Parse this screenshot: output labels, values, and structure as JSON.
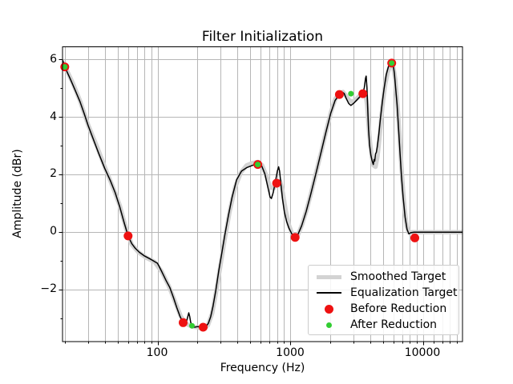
{
  "chart_data": {
    "type": "line",
    "title": "Filter Initialization",
    "xlabel": "Frequency (Hz)",
    "ylabel": "Amplitude (dBr)",
    "x_scale": "log",
    "xlim": [
      19.3,
      19950
    ],
    "ylim": [
      -3.82,
      6.42
    ],
    "grid": {
      "color": "#b6b6b6",
      "x": "major+minor",
      "y": "major"
    },
    "x_major_ticks": [
      {
        "value": 100,
        "label": "100"
      },
      {
        "value": 1000,
        "label": "1000"
      },
      {
        "value": 10000,
        "label": "10000"
      }
    ],
    "x_minor_ticks": [
      20,
      30,
      40,
      50,
      60,
      70,
      80,
      90,
      200,
      300,
      400,
      500,
      600,
      700,
      800,
      900,
      2000,
      3000,
      4000,
      5000,
      6000,
      7000,
      8000,
      9000,
      12000,
      14000,
      16000,
      18000
    ],
    "y_major_ticks": [
      {
        "value": 6,
        "label": "6"
      },
      {
        "value": 4,
        "label": "4"
      },
      {
        "value": 2,
        "label": "2"
      },
      {
        "value": 0,
        "label": "0"
      },
      {
        "value": -2,
        "label": "−2"
      }
    ],
    "y_minor_ticks": [
      5,
      3,
      1,
      -1,
      -3
    ],
    "legend": {
      "location": "lower right",
      "entries": [
        {
          "label": "Smoothed Target",
          "type": "line",
          "color": "#d3d3d3",
          "linewidth": 5.5
        },
        {
          "label": "Equalization Target",
          "type": "line",
          "color": "#000000",
          "linewidth": 1.5
        },
        {
          "label": "Before Reduction",
          "type": "marker",
          "color": "#ee1111",
          "size": 11
        },
        {
          "label": "After Reduction",
          "type": "marker",
          "color": "#32cd32",
          "size": 7
        }
      ]
    },
    "series": [
      {
        "name": "Smoothed Target",
        "type": "line",
        "color": "#d3d3d3",
        "linewidth": 5.5,
        "points": [
          [
            19.3,
            5.88
          ],
          [
            20,
            5.75
          ],
          [
            23,
            5.15
          ],
          [
            26,
            4.55
          ],
          [
            30,
            3.7
          ],
          [
            35,
            2.95
          ],
          [
            40,
            2.25
          ],
          [
            46,
            1.55
          ],
          [
            52,
            0.9
          ],
          [
            58,
            0.1
          ],
          [
            64,
            -0.45
          ],
          [
            72,
            -0.72
          ],
          [
            82,
            -0.9
          ],
          [
            95,
            -1.05
          ],
          [
            108,
            -1.4
          ],
          [
            122,
            -1.9
          ],
          [
            136,
            -2.45
          ],
          [
            150,
            -2.95
          ],
          [
            165,
            -3.2
          ],
          [
            182,
            -3.3
          ],
          [
            200,
            -3.32
          ],
          [
            220,
            -3.38
          ],
          [
            240,
            -3.25
          ],
          [
            258,
            -2.85
          ],
          [
            275,
            -2.15
          ],
          [
            295,
            -1.3
          ],
          [
            320,
            -0.3
          ],
          [
            350,
            0.7
          ],
          [
            385,
            1.55
          ],
          [
            425,
            2.05
          ],
          [
            470,
            2.3
          ],
          [
            520,
            2.38
          ],
          [
            570,
            2.42
          ],
          [
            615,
            2.3
          ],
          [
            660,
            1.95
          ],
          [
            705,
            1.55
          ],
          [
            750,
            1.5
          ],
          [
            800,
            1.7
          ],
          [
            840,
            1.75
          ],
          [
            880,
            1.35
          ],
          [
            925,
            0.75
          ],
          [
            975,
            0.25
          ],
          [
            1030,
            -0.05
          ],
          [
            1090,
            -0.18
          ],
          [
            1150,
            -0.1
          ],
          [
            1230,
            0.25
          ],
          [
            1330,
            0.75
          ],
          [
            1440,
            1.35
          ],
          [
            1570,
            2.05
          ],
          [
            1710,
            2.75
          ],
          [
            1870,
            3.5
          ],
          [
            2030,
            4.15
          ],
          [
            2190,
            4.6
          ],
          [
            2350,
            4.8
          ],
          [
            2500,
            4.85
          ],
          [
            2650,
            4.7
          ],
          [
            2800,
            4.55
          ],
          [
            2950,
            4.5
          ],
          [
            3150,
            4.6
          ],
          [
            3350,
            4.72
          ],
          [
            3550,
            4.82
          ],
          [
            3700,
            4.8
          ],
          [
            3800,
            4.4
          ],
          [
            3900,
            3.7
          ],
          [
            4000,
            3.1
          ],
          [
            4120,
            2.6
          ],
          [
            4250,
            2.3
          ],
          [
            4400,
            2.25
          ],
          [
            4550,
            2.6
          ],
          [
            4700,
            3.2
          ],
          [
            4850,
            3.9
          ],
          [
            5000,
            4.5
          ],
          [
            5200,
            5.1
          ],
          [
            5450,
            5.55
          ],
          [
            5700,
            5.78
          ],
          [
            5850,
            5.8
          ],
          [
            6000,
            5.7
          ],
          [
            6200,
            5.3
          ],
          [
            6400,
            4.55
          ],
          [
            6600,
            3.7
          ],
          [
            6800,
            2.7
          ],
          [
            7050,
            1.6
          ],
          [
            7300,
            0.75
          ],
          [
            7550,
            0.2
          ],
          [
            7800,
            -0.02
          ],
          [
            8200,
            -0.02
          ],
          [
            9000,
            -0.02
          ],
          [
            12000,
            -0.02
          ],
          [
            19900,
            -0.02
          ]
        ]
      },
      {
        "name": "Equalization Target",
        "type": "line",
        "color": "#000000",
        "linewidth": 1.5,
        "points": [
          [
            19.3,
            5.95
          ],
          [
            20,
            5.72
          ],
          [
            22,
            5.3
          ],
          [
            24,
            4.9
          ],
          [
            26,
            4.52
          ],
          [
            28,
            4.1
          ],
          [
            30,
            3.68
          ],
          [
            33,
            3.18
          ],
          [
            36,
            2.72
          ],
          [
            40,
            2.2
          ],
          [
            44,
            1.78
          ],
          [
            48,
            1.35
          ],
          [
            52,
            0.85
          ],
          [
            56,
            0.32
          ],
          [
            60,
            -0.15
          ],
          [
            64,
            -0.42
          ],
          [
            68,
            -0.58
          ],
          [
            73,
            -0.72
          ],
          [
            80,
            -0.85
          ],
          [
            88,
            -0.95
          ],
          [
            100,
            -1.1
          ],
          [
            108,
            -1.4
          ],
          [
            116,
            -1.7
          ],
          [
            124,
            -1.95
          ],
          [
            132,
            -2.3
          ],
          [
            140,
            -2.65
          ],
          [
            148,
            -2.95
          ],
          [
            156,
            -3.16
          ],
          [
            162,
            -3.18
          ],
          [
            166,
            -3.1
          ],
          [
            170,
            -2.92
          ],
          [
            172,
            -2.82
          ],
          [
            175,
            -2.95
          ],
          [
            178,
            -3.15
          ],
          [
            182,
            -3.27
          ],
          [
            190,
            -3.32
          ],
          [
            200,
            -3.3
          ],
          [
            210,
            -3.31
          ],
          [
            221,
            -3.32
          ],
          [
            232,
            -3.3
          ],
          [
            242,
            -3.18
          ],
          [
            252,
            -2.95
          ],
          [
            262,
            -2.6
          ],
          [
            275,
            -2.05
          ],
          [
            290,
            -1.35
          ],
          [
            305,
            -0.75
          ],
          [
            322,
            -0.1
          ],
          [
            342,
            0.55
          ],
          [
            365,
            1.2
          ],
          [
            395,
            1.8
          ],
          [
            430,
            2.1
          ],
          [
            470,
            2.22
          ],
          [
            520,
            2.3
          ],
          [
            570,
            2.36
          ],
          [
            610,
            2.28
          ],
          [
            645,
            2.0
          ],
          [
            675,
            1.6
          ],
          [
            705,
            1.2
          ],
          [
            722,
            1.15
          ],
          [
            745,
            1.35
          ],
          [
            775,
            1.75
          ],
          [
            800,
            2.1
          ],
          [
            818,
            2.25
          ],
          [
            832,
            2.1
          ],
          [
            850,
            1.7
          ],
          [
            875,
            1.15
          ],
          [
            905,
            0.68
          ],
          [
            940,
            0.35
          ],
          [
            980,
            0.12
          ],
          [
            1030,
            -0.08
          ],
          [
            1090,
            -0.2
          ],
          [
            1140,
            -0.12
          ],
          [
            1220,
            0.2
          ],
          [
            1320,
            0.7
          ],
          [
            1430,
            1.3
          ],
          [
            1560,
            2.0
          ],
          [
            1700,
            2.7
          ],
          [
            1860,
            3.45
          ],
          [
            2020,
            4.1
          ],
          [
            2180,
            4.55
          ],
          [
            2350,
            4.76
          ],
          [
            2450,
            4.85
          ],
          [
            2550,
            4.8
          ],
          [
            2650,
            4.62
          ],
          [
            2760,
            4.45
          ],
          [
            2870,
            4.38
          ],
          [
            3000,
            4.45
          ],
          [
            3150,
            4.55
          ],
          [
            3350,
            4.68
          ],
          [
            3530,
            4.79
          ],
          [
            3620,
            5.0
          ],
          [
            3700,
            5.32
          ],
          [
            3740,
            5.4
          ],
          [
            3790,
            5.0
          ],
          [
            3840,
            4.3
          ],
          [
            3900,
            3.55
          ],
          [
            3970,
            3.0
          ],
          [
            4060,
            2.65
          ],
          [
            4150,
            2.45
          ],
          [
            4230,
            2.33
          ],
          [
            4290,
            2.5
          ],
          [
            4340,
            2.45
          ],
          [
            4400,
            2.7
          ],
          [
            4460,
            2.75
          ],
          [
            4540,
            2.95
          ],
          [
            4650,
            3.35
          ],
          [
            4800,
            3.95
          ],
          [
            4950,
            4.5
          ],
          [
            5100,
            4.95
          ],
          [
            5300,
            5.45
          ],
          [
            5500,
            5.72
          ],
          [
            5700,
            5.88
          ],
          [
            5830,
            5.92
          ],
          [
            5950,
            5.85
          ],
          [
            6100,
            5.5
          ],
          [
            6250,
            4.95
          ],
          [
            6400,
            4.4
          ],
          [
            6560,
            3.6
          ],
          [
            6720,
            2.8
          ],
          [
            6900,
            1.95
          ],
          [
            7100,
            1.2
          ],
          [
            7350,
            0.5
          ],
          [
            7600,
            0.08
          ],
          [
            7850,
            -0.08
          ],
          [
            8100,
            -0.04
          ],
          [
            8600,
            -0.02
          ],
          [
            9500,
            -0.02
          ],
          [
            12000,
            -0.02
          ],
          [
            19900,
            -0.02
          ]
        ]
      },
      {
        "name": "Before Reduction",
        "type": "scatter",
        "color": "#ee1111",
        "markersize": 11,
        "points": [
          [
            20,
            5.72
          ],
          [
            60,
            -0.15
          ],
          [
            156,
            -3.16
          ],
          [
            221,
            -3.32
          ],
          [
            570,
            2.33
          ],
          [
            790,
            1.68
          ],
          [
            1090,
            -0.2
          ],
          [
            2350,
            4.76
          ],
          [
            3530,
            4.79
          ],
          [
            5830,
            5.85
          ],
          [
            8700,
            -0.22
          ]
        ]
      },
      {
        "name": "After Reduction",
        "type": "scatter",
        "color": "#32cd32",
        "markersize": 7,
        "points": [
          [
            20,
            5.72
          ],
          [
            182,
            -3.27
          ],
          [
            570,
            2.33
          ],
          [
            2870,
            4.79
          ],
          [
            5830,
            5.85
          ]
        ]
      }
    ]
  }
}
